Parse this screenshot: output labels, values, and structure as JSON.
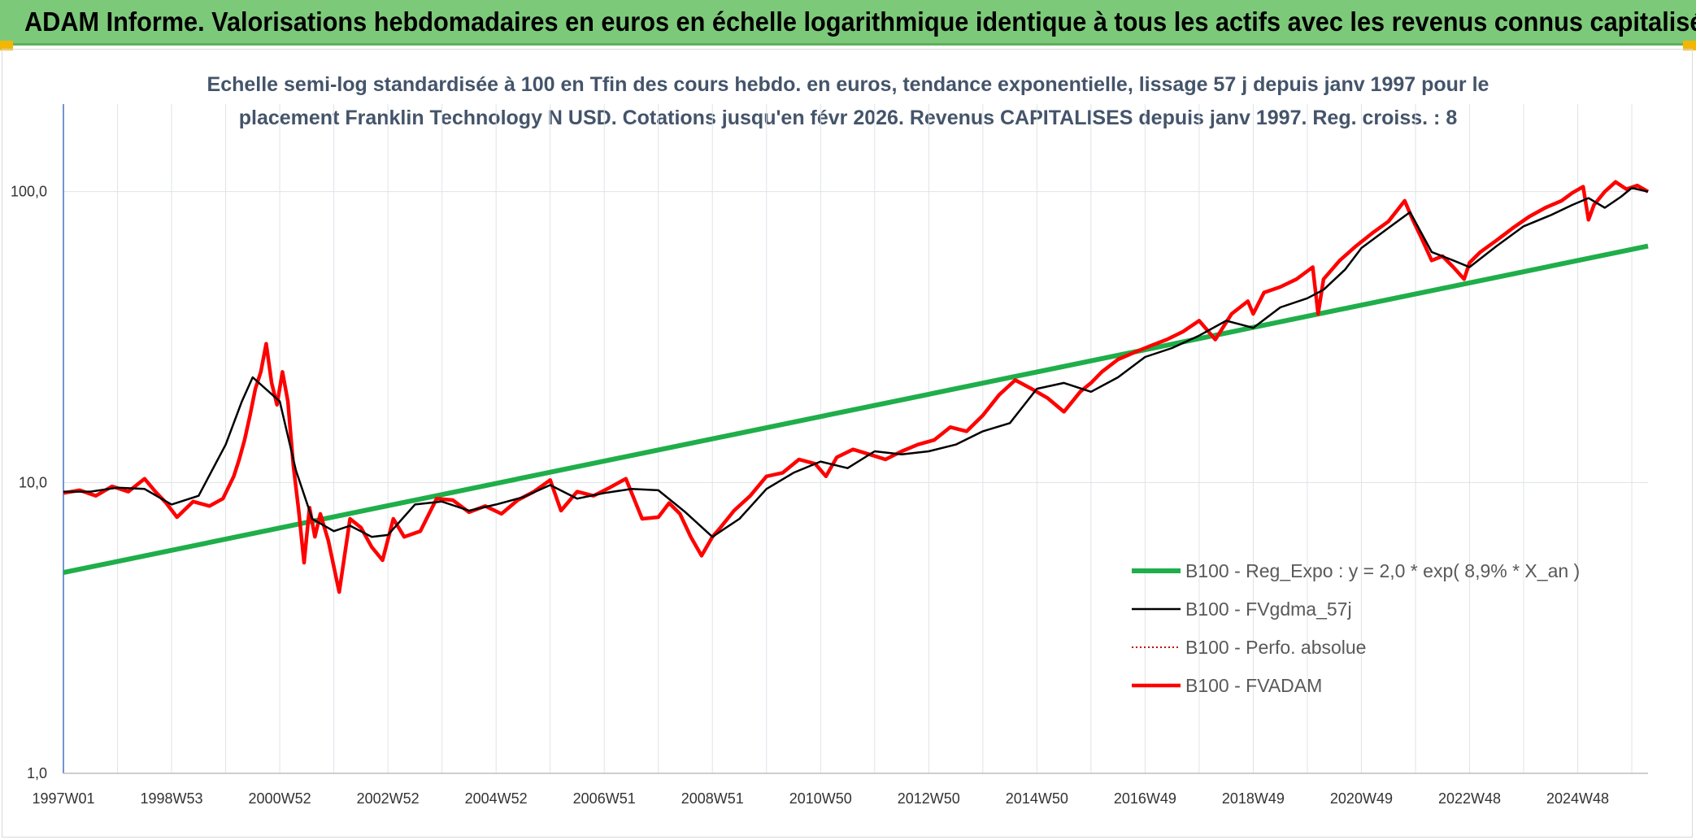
{
  "header": {
    "title": "ADAM Informe. Valorisations hebdomadaires en euros en échelle logarithmique identique à tous les actifs avec les revenus connus capitalisés"
  },
  "colors": {
    "header_bg": "#7dc97a",
    "corner": "#f2b705",
    "regression": "#1fae4a",
    "fvgdma": "#000000",
    "perfo": "#c00000",
    "fvadam": "#ff0000"
  },
  "chart_data": {
    "type": "line",
    "title_line1": "Echelle semi-log standardisée à 100 en Tfin des cours hebdo. en euros, tendance exponentielle, lissage 57 j depuis janv 1997 pour le",
    "title_line2": "placement Franklin Technology N USD. Cotations jusqu'en févr 2026. Revenus CAPITALISES depuis janv 1997. Reg. croiss. : 8",
    "y_scale": "log",
    "ylim": [
      1,
      200
    ],
    "y_ticks": [
      {
        "value": 1,
        "label": "1,0"
      },
      {
        "value": 10,
        "label": "10,0"
      },
      {
        "value": 100,
        "label": "100,0"
      }
    ],
    "x_range": [
      1997.0,
      2026.3
    ],
    "x_ticks": [
      {
        "value": 1997.0,
        "label": "1997W01"
      },
      {
        "value": 1999.0,
        "label": "1998W53"
      },
      {
        "value": 2001.0,
        "label": "2000W52"
      },
      {
        "value": 2003.0,
        "label": "2002W52"
      },
      {
        "value": 2005.0,
        "label": "2004W52"
      },
      {
        "value": 2007.0,
        "label": "2006W51"
      },
      {
        "value": 2009.0,
        "label": "2008W51"
      },
      {
        "value": 2011.0,
        "label": "2010W50"
      },
      {
        "value": 2013.0,
        "label": "2012W50"
      },
      {
        "value": 2015.0,
        "label": "2014W50"
      },
      {
        "value": 2017.0,
        "label": "2016W49"
      },
      {
        "value": 2019.0,
        "label": "2018W49"
      },
      {
        "value": 2021.0,
        "label": "2020W49"
      },
      {
        "value": 2023.0,
        "label": "2022W48"
      },
      {
        "value": 2025.0,
        "label": "2024W48"
      }
    ],
    "grid": "vertical and horizontal",
    "legend_position": "bottom-right",
    "series": [
      {
        "name": "B100 - Reg_Expo : y = 2,0 * exp( 8,9% *  X_an )",
        "style": "thick-solid",
        "x": [
          1997.0,
          2026.3
        ],
        "y": [
          4.9,
          65.0
        ]
      },
      {
        "name": "B100 - FVgdma_57j",
        "style": "thin-solid",
        "x": [
          1997.0,
          1997.5,
          1998.0,
          1998.5,
          1999.0,
          1999.5,
          2000.0,
          2000.3,
          2000.5,
          2000.8,
          2001.0,
          2001.3,
          2001.6,
          2002.0,
          2002.3,
          2002.7,
          2003.0,
          2003.5,
          2004.0,
          2004.5,
          2005.0,
          2005.5,
          2006.0,
          2006.5,
          2007.0,
          2007.5,
          2008.0,
          2008.5,
          2009.0,
          2009.5,
          2010.0,
          2010.5,
          2011.0,
          2011.5,
          2012.0,
          2012.5,
          2013.0,
          2013.5,
          2014.0,
          2014.5,
          2015.0,
          2015.5,
          2016.0,
          2016.5,
          2017.0,
          2017.5,
          2018.0,
          2018.5,
          2019.0,
          2019.5,
          2020.0,
          2020.3,
          2020.7,
          2021.0,
          2021.5,
          2021.9,
          2022.3,
          2022.7,
          2023.0,
          2023.5,
          2024.0,
          2024.5,
          2024.9,
          2025.2,
          2025.5,
          2025.8,
          2026.0,
          2026.3
        ],
        "y": [
          9.3,
          9.3,
          9.6,
          9.5,
          8.4,
          9.0,
          13.5,
          19.0,
          23.0,
          20.5,
          19.0,
          11.0,
          7.5,
          6.8,
          7.1,
          6.5,
          6.6,
          8.4,
          8.6,
          8.0,
          8.4,
          8.9,
          9.8,
          8.8,
          9.2,
          9.5,
          9.4,
          7.9,
          6.5,
          7.5,
          9.5,
          10.8,
          11.8,
          11.2,
          12.8,
          12.5,
          12.8,
          13.5,
          15.0,
          16.0,
          21.0,
          22.0,
          20.5,
          23.0,
          27.0,
          29.0,
          32.0,
          36.0,
          34.0,
          40.0,
          43.0,
          46.0,
          54.0,
          64.0,
          75.0,
          85.0,
          62.0,
          58.0,
          55.0,
          65.0,
          76.0,
          83.0,
          90.0,
          95.0,
          88.0,
          96.0,
          103.0,
          100.0
        ]
      },
      {
        "name": "B100 - Perfo. absolue",
        "style": "dotted",
        "x": [],
        "y": []
      },
      {
        "name": "B100 - FVADAM",
        "style": "thick-solid",
        "x": [
          1997.0,
          1997.3,
          1997.6,
          1997.9,
          1998.2,
          1998.5,
          1998.7,
          1998.9,
          1999.1,
          1999.4,
          1999.7,
          1999.95,
          2000.15,
          2000.25,
          2000.35,
          2000.45,
          2000.55,
          2000.65,
          2000.75,
          2000.85,
          2000.95,
          2001.05,
          2001.15,
          2001.25,
          2001.35,
          2001.45,
          2001.55,
          2001.65,
          2001.75,
          2001.9,
          2002.1,
          2002.3,
          2002.5,
          2002.7,
          2002.9,
          2003.1,
          2003.3,
          2003.6,
          2003.9,
          2004.2,
          2004.5,
          2004.8,
          2005.1,
          2005.4,
          2005.7,
          2006.0,
          2006.2,
          2006.5,
          2006.8,
          2007.1,
          2007.4,
          2007.7,
          2008.0,
          2008.2,
          2008.4,
          2008.6,
          2008.8,
          2009.0,
          2009.15,
          2009.4,
          2009.7,
          2010.0,
          2010.3,
          2010.6,
          2010.9,
          2011.1,
          2011.3,
          2011.6,
          2011.9,
          2012.2,
          2012.5,
          2012.8,
          2013.1,
          2013.4,
          2013.7,
          2014.0,
          2014.3,
          2014.6,
          2014.9,
          2015.2,
          2015.5,
          2015.8,
          2016.0,
          2016.2,
          2016.5,
          2016.8,
          2017.1,
          2017.4,
          2017.7,
          2018.0,
          2018.3,
          2018.6,
          2018.9,
          2019.0,
          2019.2,
          2019.5,
          2019.8,
          2020.1,
          2020.2,
          2020.3,
          2020.6,
          2020.9,
          2021.2,
          2021.5,
          2021.8,
          2021.95,
          2022.1,
          2022.3,
          2022.5,
          2022.7,
          2022.9,
          2023.0,
          2023.2,
          2023.5,
          2023.8,
          2024.1,
          2024.4,
          2024.7,
          2024.9,
          2025.1,
          2025.2,
          2025.3,
          2025.5,
          2025.7,
          2025.9,
          2026.1,
          2026.3
        ],
        "y": [
          9.2,
          9.4,
          9.0,
          9.7,
          9.3,
          10.3,
          9.3,
          8.5,
          7.6,
          8.6,
          8.3,
          8.8,
          10.5,
          12.0,
          14.0,
          17.0,
          21.0,
          24.0,
          30.0,
          22.0,
          18.5,
          24.0,
          19.0,
          11.5,
          8.0,
          5.3,
          8.2,
          6.5,
          7.8,
          6.3,
          4.2,
          7.5,
          7.0,
          6.0,
          5.4,
          7.5,
          6.5,
          6.8,
          8.8,
          8.7,
          7.9,
          8.3,
          7.8,
          8.7,
          9.3,
          10.2,
          8.0,
          9.3,
          9.0,
          9.6,
          10.3,
          7.5,
          7.6,
          8.5,
          7.8,
          6.5,
          5.6,
          6.5,
          7.0,
          8.0,
          9.0,
          10.5,
          10.8,
          12.0,
          11.6,
          10.5,
          12.2,
          13.0,
          12.5,
          12.0,
          12.8,
          13.5,
          14.0,
          15.5,
          15.0,
          17.0,
          20.0,
          22.5,
          21.0,
          19.5,
          17.5,
          20.5,
          22.0,
          24.0,
          26.5,
          28.0,
          29.5,
          31.0,
          33.0,
          36.0,
          31.0,
          38.0,
          42.0,
          38.0,
          45.0,
          47.0,
          50.0,
          55.0,
          38.0,
          50.0,
          58.0,
          65.0,
          72.0,
          79.0,
          93.0,
          80.0,
          70.0,
          58.0,
          60.0,
          55.0,
          50.0,
          57.0,
          62.0,
          68.0,
          75.0,
          82.0,
          88.0,
          93.0,
          99.0,
          104.0,
          80.0,
          90.0,
          100.0,
          108.0,
          102.0,
          105.0,
          100.0
        ]
      }
    ]
  }
}
